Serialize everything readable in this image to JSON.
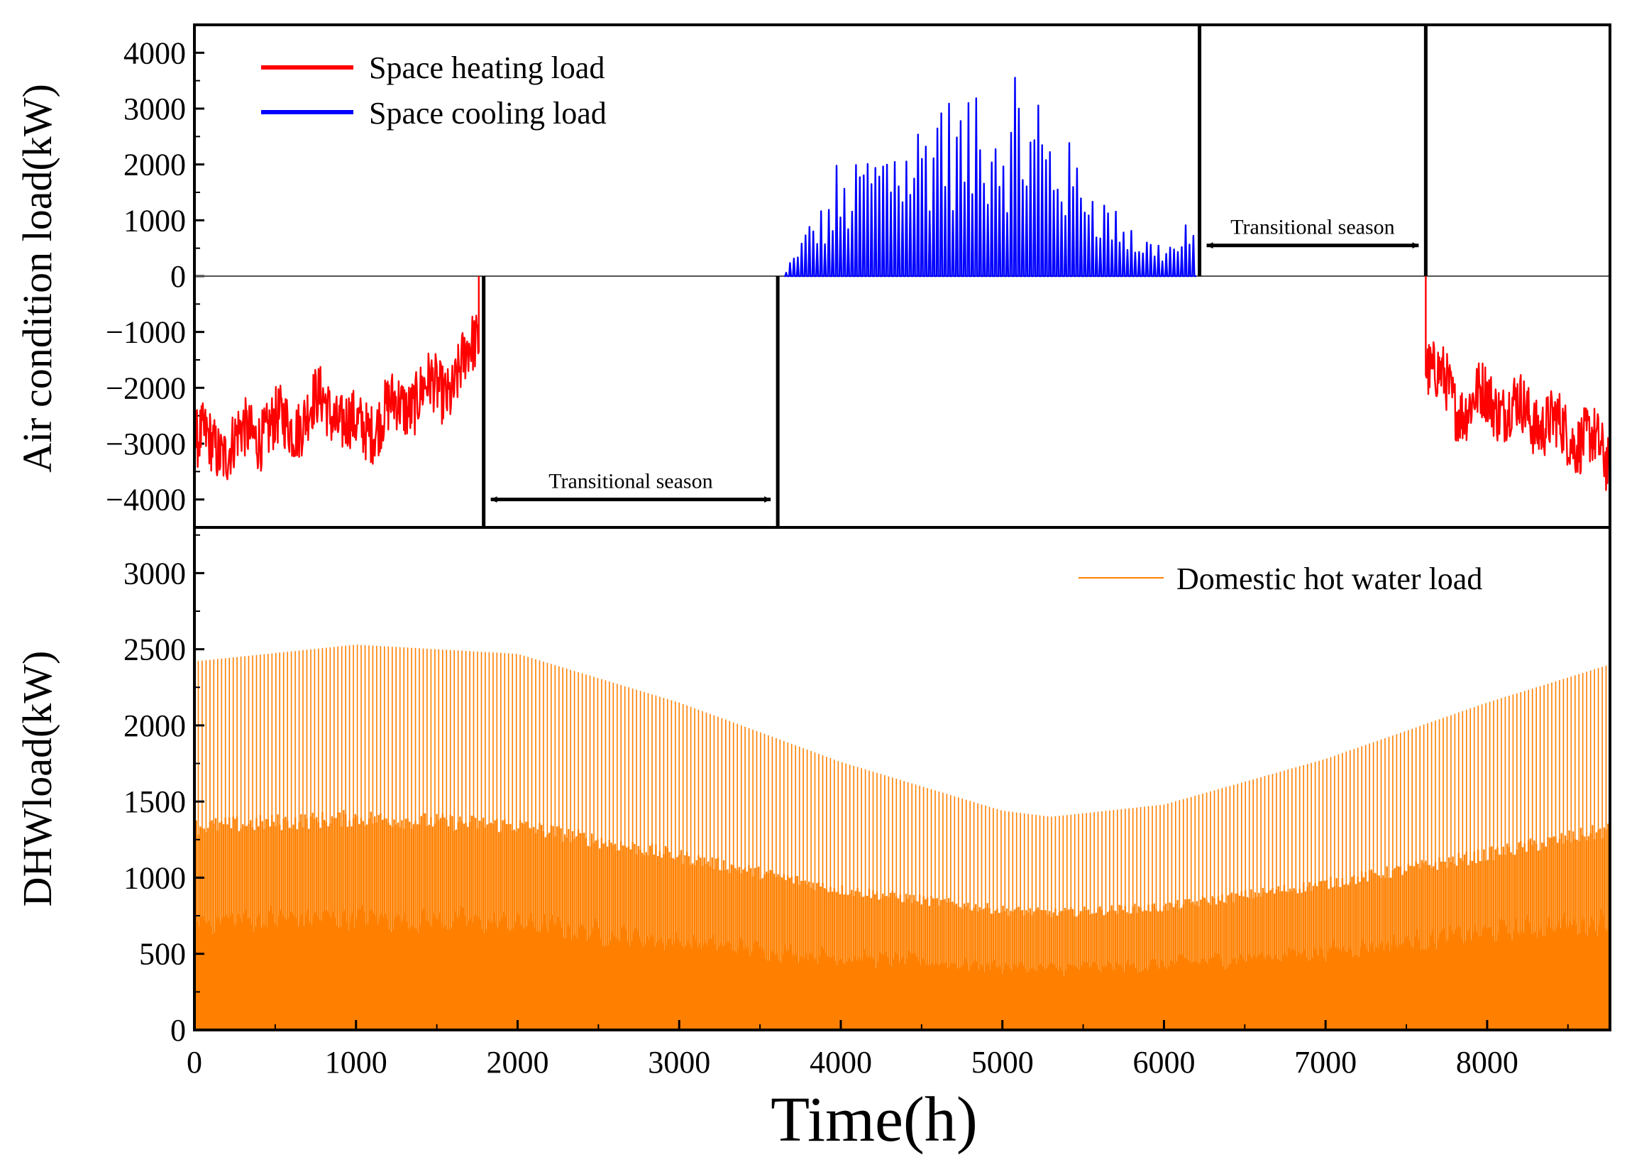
{
  "chart_data": [
    {
      "type": "line",
      "panel": "top",
      "ylabel": "Air condition load(kW)",
      "xlim": [
        0,
        8760
      ],
      "ylim": [
        -4500,
        4500
      ],
      "yticks": [
        -4000,
        -3000,
        -2000,
        -1000,
        0,
        1000,
        2000,
        3000,
        4000
      ],
      "ytick_labels": [
        "−4000",
        "−3000",
        "−2000",
        "−1000",
        "0",
        "1000",
        "2000",
        "3000",
        "4000"
      ],
      "legend_position": "top-left",
      "series": [
        {
          "name": "Space heating load",
          "color": "#ff0000",
          "segments": [
            {
              "x": [
                0,
                200,
                400,
                600,
                800,
                1000,
                1200,
                1400,
                1600,
                1760
              ],
              "y": [
                -3000,
                -3050,
                -2750,
                -2650,
                -2250,
                -2800,
                -2450,
                -2100,
                -1950,
                -1100
              ]
            },
            {
              "x": [
                7620,
                7800,
                8000,
                8200,
                8400,
                8600,
                8760
              ],
              "y": [
                -1450,
                -2300,
                -2200,
                -2400,
                -2700,
                -2900,
                -3300
              ]
            }
          ]
        },
        {
          "name": "Space cooling load",
          "color": "#0000ff",
          "x": [
            3650,
            3800,
            4000,
            4200,
            4400,
            4600,
            4800,
            5000,
            5200,
            5400,
            5600,
            5800,
            6000,
            6200
          ],
          "y": [
            0,
            1000,
            1700,
            2400,
            2600,
            3400,
            3100,
            3200,
            3100,
            2500,
            1600,
            850,
            600,
            800
          ]
        }
      ],
      "annotations": [
        {
          "text": "Transitional season",
          "x_start": 1790,
          "x_end": 3610,
          "y": -4000
        },
        {
          "text": "Transitional season",
          "x_start": 6220,
          "x_end": 7620,
          "y": 550
        }
      ],
      "separator_lines_x": [
        1790,
        3610,
        6220,
        7620
      ]
    },
    {
      "type": "area",
      "panel": "bottom",
      "xlabel": "Time(h)",
      "ylabel": "DHWload(kW)",
      "xlim": [
        0,
        8760
      ],
      "ylim": [
        0,
        3300
      ],
      "xticks": [
        0,
        1000,
        2000,
        3000,
        4000,
        5000,
        6000,
        7000,
        8000
      ],
      "xtick_labels": [
        "0",
        "1000",
        "2000",
        "3000",
        "4000",
        "5000",
        "6000",
        "7000",
        "8000"
      ],
      "yticks": [
        0,
        500,
        1000,
        1500,
        2000,
        2500,
        3000
      ],
      "ytick_labels": [
        "0",
        "500",
        "1000",
        "1500",
        "2000",
        "2500",
        "3000"
      ],
      "legend_position": "top-right",
      "series": [
        {
          "name": "Domestic hot water load",
          "color": "#ff8000",
          "envelope_x": [
            0,
            1000,
            2000,
            3000,
            4000,
            5000,
            5300,
            6000,
            7000,
            8000,
            8760
          ],
          "daily_peak": [
            2420,
            2530,
            2470,
            2150,
            1760,
            1440,
            1400,
            1480,
            1780,
            2150,
            2400
          ],
          "secondary_peak": [
            1390,
            1450,
            1400,
            1190,
            960,
            820,
            800,
            840,
            1000,
            1200,
            1370
          ],
          "base_level": [
            720,
            740,
            700,
            580,
            480,
            420,
            400,
            430,
            520,
            640,
            720
          ]
        }
      ]
    }
  ]
}
